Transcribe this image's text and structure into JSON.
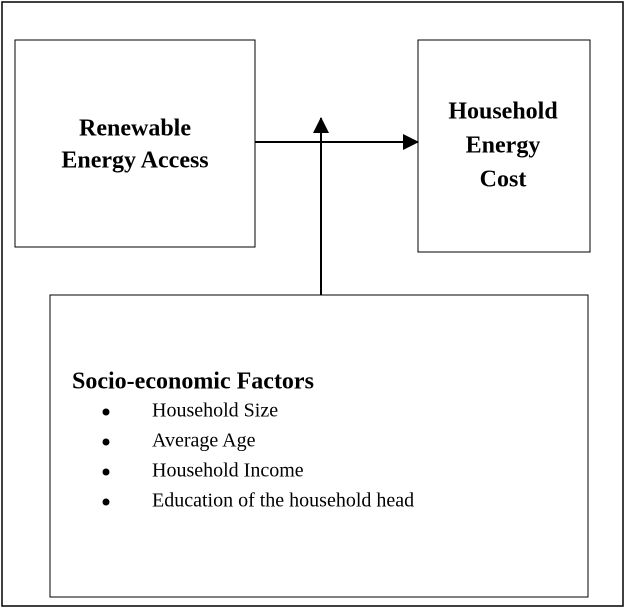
{
  "nodes": [
    {
      "lines": [
        "Renewable",
        "Energy Access"
      ]
    },
    {
      "lines": [
        "Household",
        "Energy",
        "Cost"
      ]
    },
    {
      "title": "Socio-economic Factors",
      "items": [
        "Household Size",
        "Average Age",
        "Household Income",
        "Education of the household head"
      ]
    }
  ]
}
